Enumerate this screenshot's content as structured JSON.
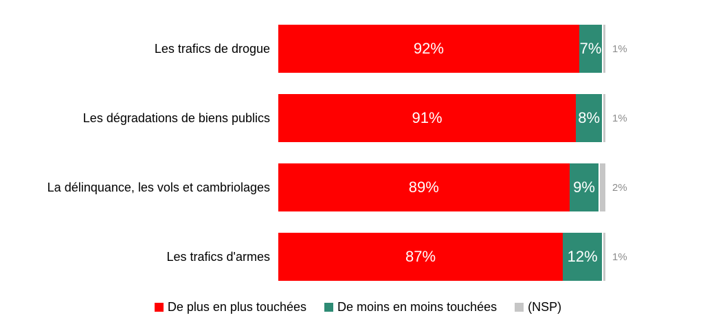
{
  "chart_data": {
    "type": "bar",
    "orientation": "horizontal",
    "stacked": true,
    "title": "",
    "xlabel": "",
    "ylabel": "",
    "xlim": [
      0,
      100
    ],
    "grid": false,
    "legend_position": "bottom",
    "background": "#FFFFFF",
    "label_format": "{value}%",
    "categories": [
      "Les trafics de drogue",
      "Les dégradations de biens publics",
      "La délinquance, les vols et cambriolages",
      "Les trafics d'armes"
    ],
    "series": [
      {
        "name": "De plus en plus touchées",
        "color": "#FF0000",
        "text_color": "#FFFFFF",
        "label_outside": false,
        "values": [
          92,
          91,
          89,
          87
        ]
      },
      {
        "name": "De moins en moins touchées",
        "color": "#2E8B74",
        "text_color": "#FFFFFF",
        "label_outside": false,
        "values": [
          7,
          8,
          9,
          12
        ]
      },
      {
        "name": "(NSP)",
        "color": "#C6C6C6",
        "text_color": "#8C8C8C",
        "label_outside": true,
        "values": [
          1,
          1,
          2,
          1
        ]
      }
    ]
  }
}
